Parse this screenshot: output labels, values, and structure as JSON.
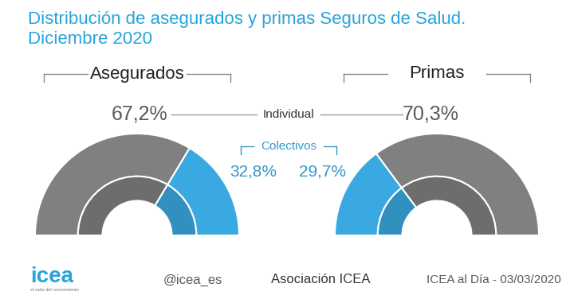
{
  "chart_data": {
    "type": "pie",
    "title": "Distribución de asegurados y primas Seguros de Salud.\nDiciembre 2020",
    "categories": [
      "Individual",
      "Colectivos"
    ],
    "colors": [
      "#808080",
      "#3aa9e1"
    ],
    "data_labels": true,
    "series": [
      {
        "name": "Asegurados",
        "values": [
          67.2,
          32.8
        ],
        "value_labels": [
          "67,2%",
          "32,8%"
        ]
      },
      {
        "name": "Primas",
        "values": [
          70.3,
          29.7
        ],
        "value_labels": [
          "70,3%",
          "29,7%"
        ]
      }
    ]
  },
  "footer": {
    "logo": "icea",
    "tagline": "el valor del conocimiento",
    "twitter": "@icea_es",
    "linkedin": "Asociación ICEA",
    "source": "ICEA al Día - 03/03/2020"
  }
}
